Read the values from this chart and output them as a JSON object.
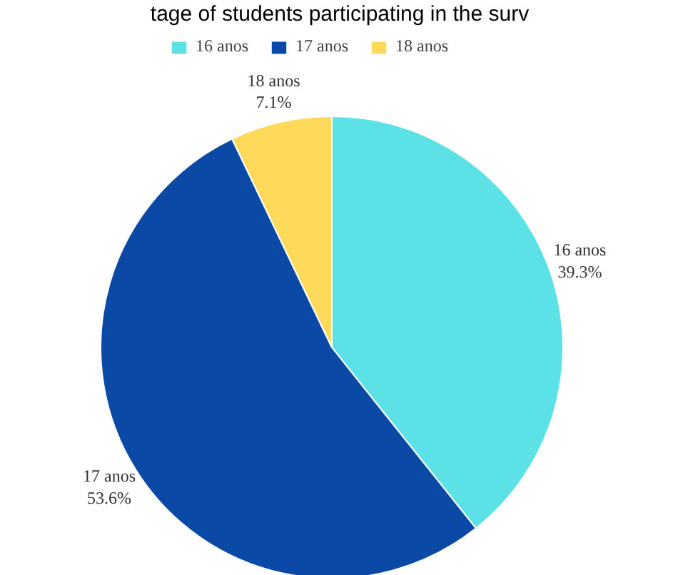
{
  "chart_data": {
    "type": "pie",
    "title": "tage of students participating in the surv",
    "categories": [
      "16 anos",
      "17 anos",
      "18 anos"
    ],
    "values": [
      39.3,
      53.6,
      7.1
    ],
    "value_labels": [
      "39.3%",
      "53.6%",
      "7.1%"
    ],
    "colors": [
      "#5ce1e6",
      "#0a4aa6",
      "#ffd95a"
    ],
    "legend": "top"
  }
}
